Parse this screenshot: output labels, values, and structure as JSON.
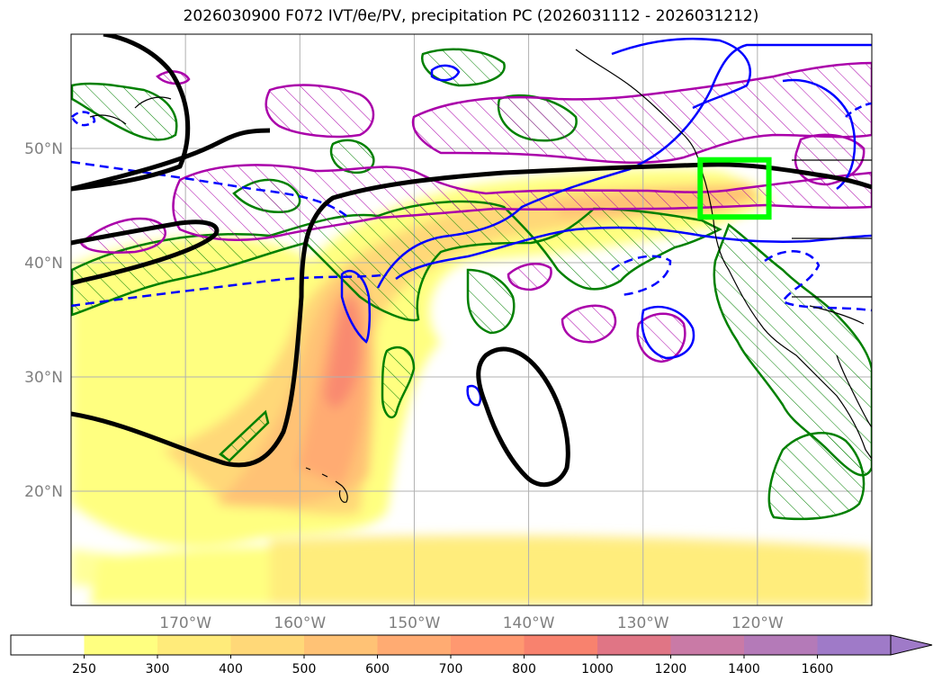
{
  "title": "2026030900 F072 IVT/θe/PV, precipitation PC (2026031112 - 2026031212)",
  "map": {
    "lon_range": [
      -180,
      -110
    ],
    "lat_range": [
      10,
      60
    ],
    "lat_ticks": [
      {
        "value": 20,
        "label": "20°N"
      },
      {
        "value": 30,
        "label": "30°N"
      },
      {
        "value": 40,
        "label": "40°N"
      },
      {
        "value": 50,
        "label": "50°N"
      }
    ],
    "lon_ticks": [
      {
        "value": -170,
        "label": "170°W"
      },
      {
        "value": -160,
        "label": "160°W"
      },
      {
        "value": -150,
        "label": "150°W"
      },
      {
        "value": -140,
        "label": "140°W"
      },
      {
        "value": -130,
        "label": "130°W"
      },
      {
        "value": -120,
        "label": "120°W"
      }
    ],
    "highlight_box": {
      "lon": [
        -125,
        -119
      ],
      "lat": [
        44,
        49
      ],
      "color": "#00ff00"
    },
    "contour_colors": {
      "theta_e": "#000000",
      "pv": "#0000ff",
      "precip_positive": "#008000",
      "precip_negative": "#aa00aa"
    }
  },
  "colorbar": {
    "labels": [
      "250",
      "300",
      "400",
      "500",
      "600",
      "700",
      "800",
      "1000",
      "1200",
      "1400",
      "1600"
    ],
    "colors": [
      "#ffffff",
      "#ffff80",
      "#ffeb7a",
      "#ffd878",
      "#ffc275",
      "#ffab72",
      "#ff9870",
      "#f8826e",
      "#e07585",
      "#c97aa6",
      "#b47ab8",
      "#9f7ac8"
    ],
    "extend": "max"
  }
}
